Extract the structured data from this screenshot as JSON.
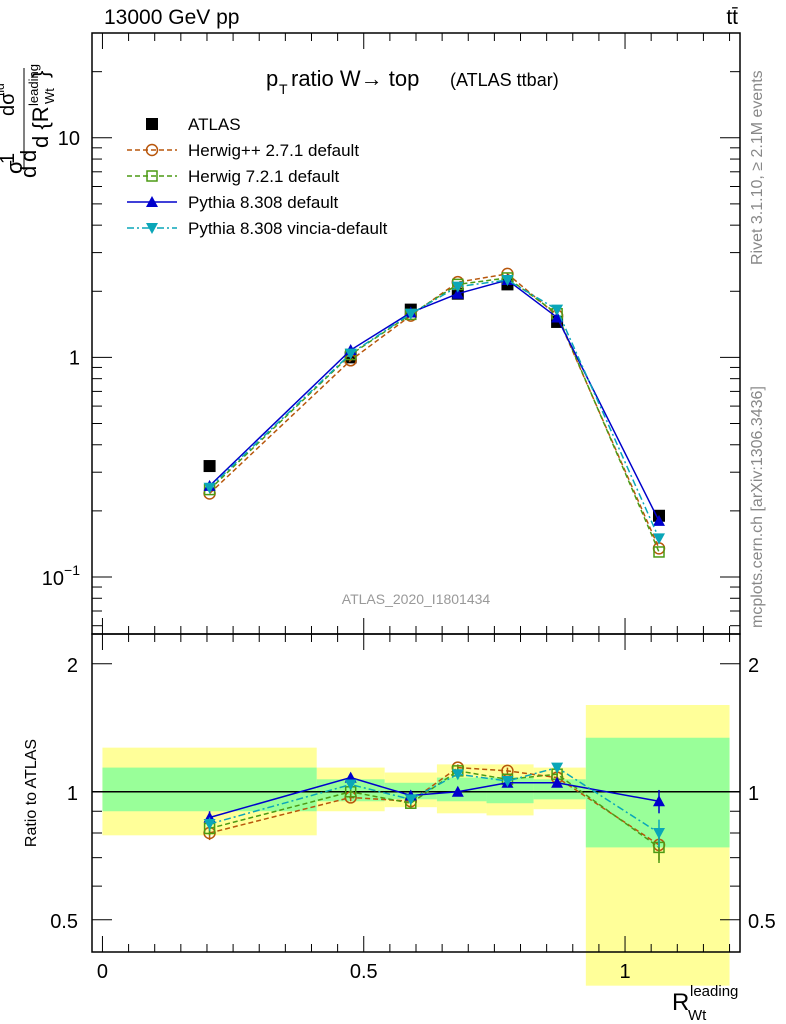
{
  "header": {
    "left": "13000 GeV pp",
    "right": "tt̄"
  },
  "side_labels": {
    "rivet": "Rivet 3.1.10, ≥ 2.1M events",
    "mcplots": "mcplots.cern.ch [arXiv:1306.3436]"
  },
  "chart_data": [
    {
      "type": "line",
      "panel": "main",
      "title_main": "p",
      "title_sub": "T",
      "title_rest": " ratio W→ top",
      "title_note": "(ATLAS ttbar)",
      "watermark": "ATLAS_2020_I1801434",
      "ylabel": "dσ/d{R_Wt^leading} (1/σ)",
      "yscale": "log",
      "ylim": [
        0.055,
        30
      ],
      "xlim": [
        -0.02,
        1.22
      ],
      "ytick_labels": [
        "10",
        "1",
        "10"
      ],
      "ytick_exp": "−1",
      "legend_position": "top-left",
      "x": [
        0.205,
        0.475,
        0.59,
        0.68,
        0.775,
        0.87,
        1.065
      ],
      "series": [
        {
          "name": "ATLAS",
          "color": "#000000",
          "marker": "square",
          "values": [
            0.32,
            1.0,
            1.65,
            1.95,
            2.15,
            1.45,
            0.19
          ]
        },
        {
          "name": "Herwig++ 2.7.1 default",
          "color": "#b8560b",
          "marker": "circle-open",
          "dash": "dashed",
          "values": [
            0.24,
            0.97,
            1.55,
            2.2,
            2.4,
            1.55,
            0.135
          ]
        },
        {
          "name": "Herwig 7.2.1 default",
          "color": "#4c9a14",
          "marker": "square-open",
          "dash": "dashed",
          "values": [
            0.25,
            1.03,
            1.57,
            2.15,
            2.3,
            1.58,
            0.13
          ]
        },
        {
          "name": "Pythia 8.308 default",
          "color": "#0000cc",
          "marker": "triangle-up",
          "dash": "solid",
          "values": [
            0.26,
            1.08,
            1.6,
            1.95,
            2.25,
            1.52,
            0.18
          ]
        },
        {
          "name": "Pythia 8.308 vincia-default",
          "color": "#0aa6b8",
          "marker": "triangle-down",
          "dash": "dashdot",
          "values": [
            0.255,
            1.04,
            1.58,
            2.1,
            2.25,
            1.65,
            0.15
          ]
        }
      ]
    },
    {
      "type": "line",
      "panel": "ratio",
      "ylabel": "Ratio to ATLAS",
      "xlabel": "R",
      "xlabel_sub": "Wt",
      "xlabel_sup": "leading",
      "ylim": [
        0.42,
        2.35
      ],
      "yscale": "log",
      "ytick_labels": [
        "2",
        "1",
        "0.5"
      ],
      "xtick_labels": [
        "0",
        "0.5",
        "1"
      ],
      "x": [
        0.205,
        0.475,
        0.59,
        0.68,
        0.775,
        0.87,
        1.065
      ],
      "bands": [
        {
          "x": [
            0.0,
            0.41
          ],
          "yellow": [
            0.79,
            1.27
          ],
          "green": [
            0.9,
            1.14
          ]
        },
        {
          "x": [
            0.41,
            0.54
          ],
          "yellow": [
            0.9,
            1.14
          ],
          "green": [
            0.95,
            1.07
          ]
        },
        {
          "x": [
            0.54,
            0.64
          ],
          "yellow": [
            0.92,
            1.11
          ],
          "green": [
            0.96,
            1.05
          ]
        },
        {
          "x": [
            0.64,
            0.735
          ],
          "yellow": [
            0.89,
            1.16
          ],
          "green": [
            0.95,
            1.08
          ]
        },
        {
          "x": [
            0.735,
            0.825
          ],
          "yellow": [
            0.88,
            1.16
          ],
          "green": [
            0.94,
            1.08
          ]
        },
        {
          "x": [
            0.825,
            0.925
          ],
          "yellow": [
            0.91,
            1.14
          ],
          "green": [
            0.96,
            1.07
          ]
        },
        {
          "x": [
            0.925,
            1.2
          ],
          "yellow": [
            0.35,
            1.6
          ],
          "green": [
            0.74,
            1.34
          ]
        }
      ],
      "series": [
        {
          "name": "Herwig++ 2.7.1 default",
          "values": [
            0.8,
            0.97,
            0.95,
            1.14,
            1.12,
            1.08,
            0.75
          ],
          "err": [
            0.03,
            0.02,
            0.02,
            0.02,
            0.02,
            0.02,
            0.06
          ]
        },
        {
          "name": "Herwig 7.2.1 default",
          "values": [
            0.82,
            1.0,
            0.94,
            1.12,
            1.07,
            1.1,
            0.74
          ],
          "err": [
            0.03,
            0.02,
            0.02,
            0.02,
            0.02,
            0.02,
            0.06
          ]
        },
        {
          "name": "Pythia 8.308 default",
          "values": [
            0.87,
            1.08,
            0.98,
            1.0,
            1.05,
            1.05,
            0.95
          ],
          "err": [
            0.03,
            0.02,
            0.02,
            0.02,
            0.02,
            0.02,
            0.06
          ]
        },
        {
          "name": "Pythia 8.308 vincia-default",
          "values": [
            0.84,
            1.04,
            0.96,
            1.1,
            1.06,
            1.14,
            0.8
          ],
          "err": [
            0.03,
            0.02,
            0.02,
            0.02,
            0.02,
            0.02,
            0.06
          ]
        }
      ]
    }
  ]
}
